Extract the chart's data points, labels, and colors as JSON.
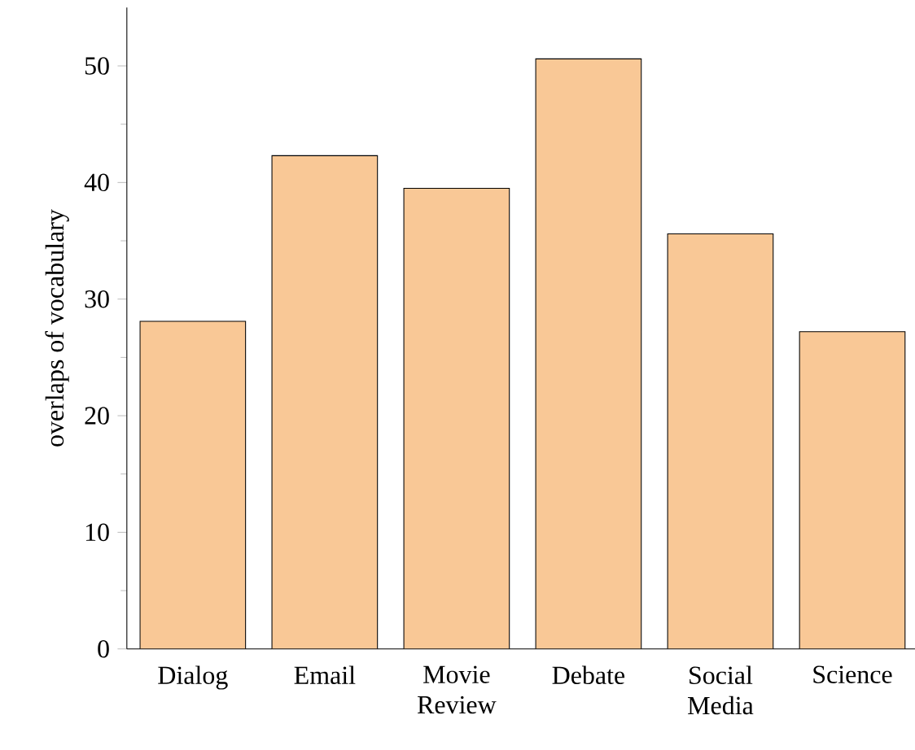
{
  "chart_data": {
    "type": "bar",
    "ylabel": "overlaps of vocabulary",
    "categories": [
      "Dialog",
      "Email",
      "Movie Review",
      "Debate",
      "Social Media",
      "Science"
    ],
    "values": [
      28.1,
      42.3,
      39.5,
      50.6,
      35.6,
      27.2
    ],
    "color": "#f9c896",
    "ylim": [
      0,
      55
    ],
    "yticks": [
      0,
      10,
      20,
      30,
      40,
      50
    ]
  }
}
